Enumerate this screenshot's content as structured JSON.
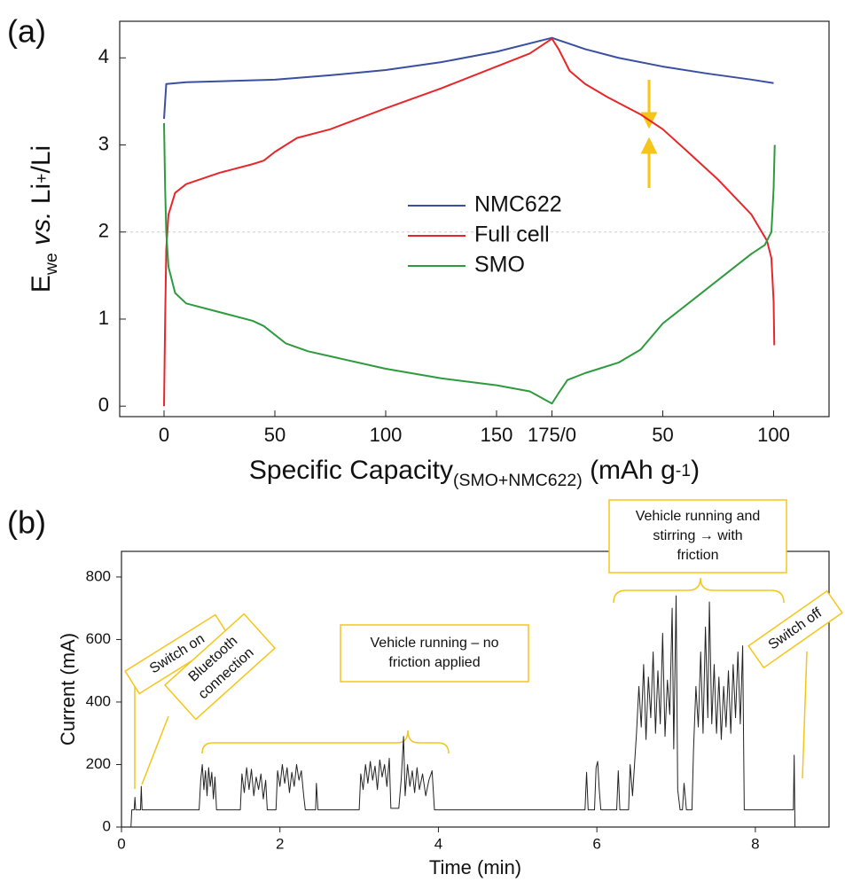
{
  "chart_data": [
    {
      "type": "line",
      "label": "(a)",
      "xlabel": [
        {
          "text": "Specific Capacity"
        },
        {
          "text": "(SMO+NMC622)",
          "shift": "sub"
        },
        {
          "text": " (mAh g"
        },
        {
          "text": "-1",
          "shift": "sup"
        },
        {
          "text": ")"
        }
      ],
      "ylabel": [
        {
          "text": "E"
        },
        {
          "text": "we",
          "shift": "sub"
        },
        {
          "text": " vs.",
          "style": "italic"
        },
        {
          "text": " Li"
        },
        {
          "text": "+",
          "shift": "sup"
        },
        {
          "text": "/Li"
        }
      ],
      "xlim": [
        -20,
        300
      ],
      "ylim": [
        -0.12,
        4.42
      ],
      "xticks": [
        0,
        50,
        100,
        150,
        {
          "value": 175,
          "label": "175/0"
        },
        {
          "value": 225,
          "label": "50"
        },
        {
          "value": 275,
          "label": "100"
        }
      ],
      "yticks": [
        0,
        1,
        2,
        3,
        4
      ],
      "reference_line": 2,
      "legend": "center",
      "series": [
        {
          "name": "NMC622",
          "color": "#3a4fa0",
          "x": [
            0,
            1,
            10,
            50,
            75,
            100,
            125,
            150,
            175,
            190,
            205,
            225,
            245,
            265,
            275
          ],
          "values": [
            3.3,
            3.7,
            3.72,
            3.75,
            3.8,
            3.86,
            3.95,
            4.07,
            4.23,
            4.1,
            4.0,
            3.9,
            3.82,
            3.75,
            3.71
          ]
        },
        {
          "name": "Full cell",
          "color": "#e8262a",
          "x": [
            0,
            0.5,
            1,
            2,
            5,
            10,
            25,
            40,
            45,
            50,
            60,
            75,
            100,
            125,
            150,
            165,
            175,
            178,
            183,
            190,
            200,
            215,
            225,
            235,
            250,
            265,
            272,
            274,
            275,
            275.3
          ],
          "values": [
            0,
            1.0,
            1.8,
            2.2,
            2.45,
            2.55,
            2.68,
            2.78,
            2.82,
            2.92,
            3.08,
            3.18,
            3.42,
            3.65,
            3.9,
            4.05,
            4.22,
            4.1,
            3.85,
            3.7,
            3.55,
            3.35,
            3.18,
            2.95,
            2.6,
            2.2,
            1.9,
            1.7,
            1.2,
            0.7
          ]
        },
        {
          "name": "SMO",
          "color": "#2e9a3e",
          "x": [
            0,
            0.5,
            1,
            2,
            5,
            10,
            25,
            40,
            45,
            55,
            65,
            100,
            125,
            150,
            165,
            175,
            178,
            182,
            190,
            205,
            215,
            225,
            240,
            255,
            265,
            271,
            274,
            275,
            275.5
          ],
          "values": [
            3.25,
            2.5,
            2.0,
            1.6,
            1.3,
            1.18,
            1.08,
            0.98,
            0.92,
            0.72,
            0.63,
            0.43,
            0.32,
            0.24,
            0.17,
            0.03,
            0.15,
            0.3,
            0.38,
            0.5,
            0.65,
            0.95,
            1.25,
            1.55,
            1.75,
            1.85,
            2.0,
            2.5,
            3.0
          ]
        }
      ]
    },
    {
      "type": "line",
      "label": "(b)",
      "xlabel": [
        {
          "text": "Time (min)"
        }
      ],
      "ylabel": [
        {
          "text": "Current (mA)"
        }
      ],
      "xlim": [
        0,
        8.93
      ],
      "ylim": [
        0,
        882
      ],
      "xticks": [
        0,
        2,
        4,
        6,
        8
      ],
      "yticks": [
        0,
        200,
        400,
        600,
        800
      ],
      "annotations": [
        {
          "lines": [
            "Switch on"
          ]
        },
        {
          "lines": [
            "Bluetooth",
            "connection"
          ]
        },
        {
          "lines": [
            "Vehicle running – no",
            "friction applied"
          ]
        },
        {
          "lines": [
            "Vehicle running and",
            "stirring → with",
            "friction"
          ]
        },
        {
          "lines": [
            "Switch off"
          ]
        }
      ],
      "series": [
        {
          "color": "#222222",
          "x": [
            0.12,
            0.13,
            0.16,
            0.17,
            0.18,
            0.24,
            0.25,
            0.26,
            0.98,
            1.0,
            1.02,
            1.04,
            1.06,
            1.08,
            1.1,
            1.12,
            1.14,
            1.16,
            1.18,
            1.2,
            1.5,
            1.52,
            1.55,
            1.58,
            1.61,
            1.64,
            1.67,
            1.7,
            1.73,
            1.76,
            1.79,
            1.82,
            1.84,
            1.95,
            1.97,
            2.0,
            2.03,
            2.06,
            2.09,
            2.12,
            2.15,
            2.18,
            2.21,
            2.24,
            2.27,
            2.3,
            2.32,
            2.45,
            2.46,
            2.48,
            3.0,
            3.02,
            3.05,
            3.08,
            3.11,
            3.14,
            3.17,
            3.2,
            3.23,
            3.26,
            3.29,
            3.32,
            3.35,
            3.38,
            3.4,
            3.5,
            3.53,
            3.56,
            3.58,
            3.61,
            3.64,
            3.67,
            3.7,
            3.73,
            3.76,
            3.8,
            3.84,
            3.88,
            3.92,
            3.95,
            5.85,
            5.87,
            5.89,
            5.97,
            5.99,
            6.01,
            6.03,
            6.05,
            6.25,
            6.27,
            6.29,
            6.4,
            6.42,
            6.45,
            6.5,
            6.53,
            6.56,
            6.59,
            6.62,
            6.65,
            6.68,
            6.71,
            6.74,
            6.77,
            6.8,
            6.83,
            6.86,
            6.89,
            6.92,
            6.95,
            6.97,
            7.0,
            7.02,
            7.05,
            7.08,
            7.1,
            7.13,
            7.2,
            7.22,
            7.25,
            7.28,
            7.31,
            7.34,
            7.37,
            7.4,
            7.42,
            7.45,
            7.48,
            7.51,
            7.54,
            7.57,
            7.6,
            7.63,
            7.66,
            7.69,
            7.72,
            7.75,
            7.78,
            7.81,
            7.84,
            7.86,
            8.48,
            8.49,
            8.5
          ],
          "values": [
            0,
            55,
            55,
            95,
            55,
            55,
            130,
            55,
            55,
            150,
            200,
            120,
            180,
            100,
            190,
            130,
            175,
            90,
            160,
            55,
            55,
            170,
            110,
            190,
            120,
            185,
            100,
            160,
            120,
            170,
            90,
            150,
            55,
            55,
            180,
            130,
            200,
            140,
            190,
            110,
            175,
            130,
            200,
            150,
            180,
            100,
            55,
            55,
            140,
            55,
            55,
            170,
            120,
            200,
            140,
            210,
            150,
            195,
            120,
            215,
            160,
            200,
            130,
            220,
            60,
            60,
            150,
            290,
            100,
            200,
            130,
            180,
            110,
            190,
            120,
            170,
            100,
            150,
            180,
            55,
            55,
            175,
            55,
            55,
            190,
            210,
            120,
            55,
            55,
            180,
            55,
            55,
            200,
            100,
            300,
            450,
            320,
            520,
            280,
            480,
            350,
            560,
            300,
            500,
            330,
            620,
            290,
            470,
            360,
            700,
            250,
            740,
            120,
            55,
            55,
            140,
            55,
            55,
            250,
            450,
            320,
            560,
            300,
            640,
            350,
            720,
            330,
            520,
            300,
            480,
            280,
            450,
            320,
            500,
            300,
            520,
            350,
            560,
            330,
            580,
            55,
            55,
            230,
            0
          ]
        }
      ]
    }
  ]
}
